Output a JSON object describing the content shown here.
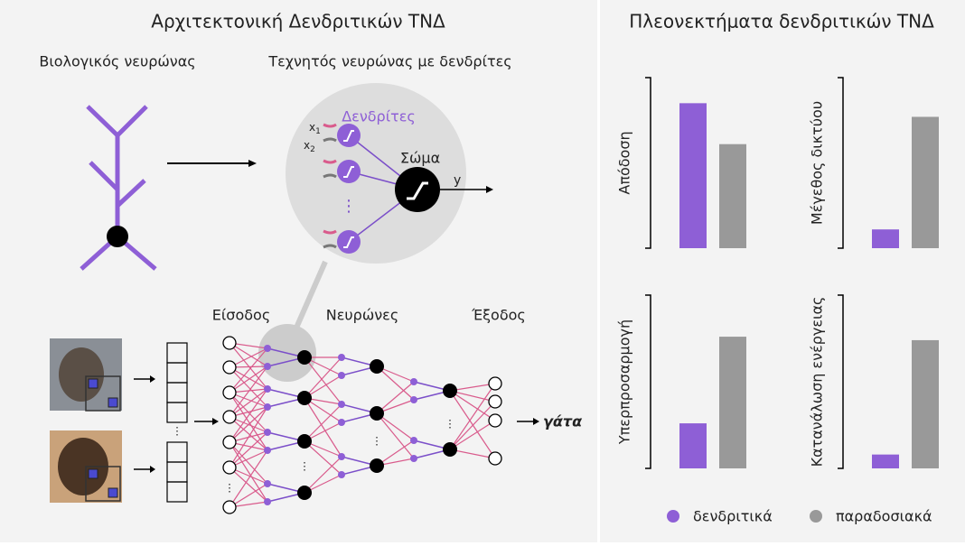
{
  "diagram": {
    "title": "Αρχιτεκτονική Δενδριτικών ΤΝΔ",
    "bio_label": "Βιολογικός νευρώνας",
    "artificial_label": "Τεχνητός νευρώνας με δενδρίτες",
    "dendrites_label": "Δενδρίτες",
    "soma_label": "Σώμα",
    "x1": "x",
    "x1_sub": "1",
    "x2": "x",
    "x2_sub": "2",
    "y_label": "y",
    "input_label": "Είσοδος",
    "neurons_label": "Νευρώνες",
    "output_label": "Έξοδος",
    "output_class": "γάτα"
  },
  "panel_title": "Πλεονεκτήματα δενδριτικών ΤΝΔ",
  "chart_data": [
    {
      "type": "bar",
      "ylabel": "Απόδοση",
      "ylim": [
        0,
        100
      ],
      "series": [
        {
          "name": "δενδριτικά",
          "color": "#8e5fd6",
          "values": [
            85
          ]
        },
        {
          "name": "παραδοσιακά",
          "color": "#999999",
          "values": [
            61
          ]
        }
      ]
    },
    {
      "type": "bar",
      "ylabel": "Μέγεθος δικτύου",
      "ylim": [
        0,
        100
      ],
      "series": [
        {
          "name": "δενδριτικά",
          "color": "#8e5fd6",
          "values": [
            11
          ]
        },
        {
          "name": "παραδοσιακά",
          "color": "#999999",
          "values": [
            77
          ]
        }
      ]
    },
    {
      "type": "bar",
      "ylabel": "Υπερπροσαρμογή",
      "ylim": [
        0,
        100
      ],
      "series": [
        {
          "name": "δενδριτικά",
          "color": "#8e5fd6",
          "values": [
            26
          ]
        },
        {
          "name": "παραδοσιακά",
          "color": "#999999",
          "values": [
            76
          ]
        }
      ]
    },
    {
      "type": "bar",
      "ylabel": "Κατανάλωση ενέργειας",
      "ylim": [
        0,
        100
      ],
      "series": [
        {
          "name": "δενδριτικά",
          "color": "#8e5fd6",
          "values": [
            8
          ]
        },
        {
          "name": "παραδοσιακά",
          "color": "#999999",
          "values": [
            74
          ]
        }
      ]
    }
  ]
}
